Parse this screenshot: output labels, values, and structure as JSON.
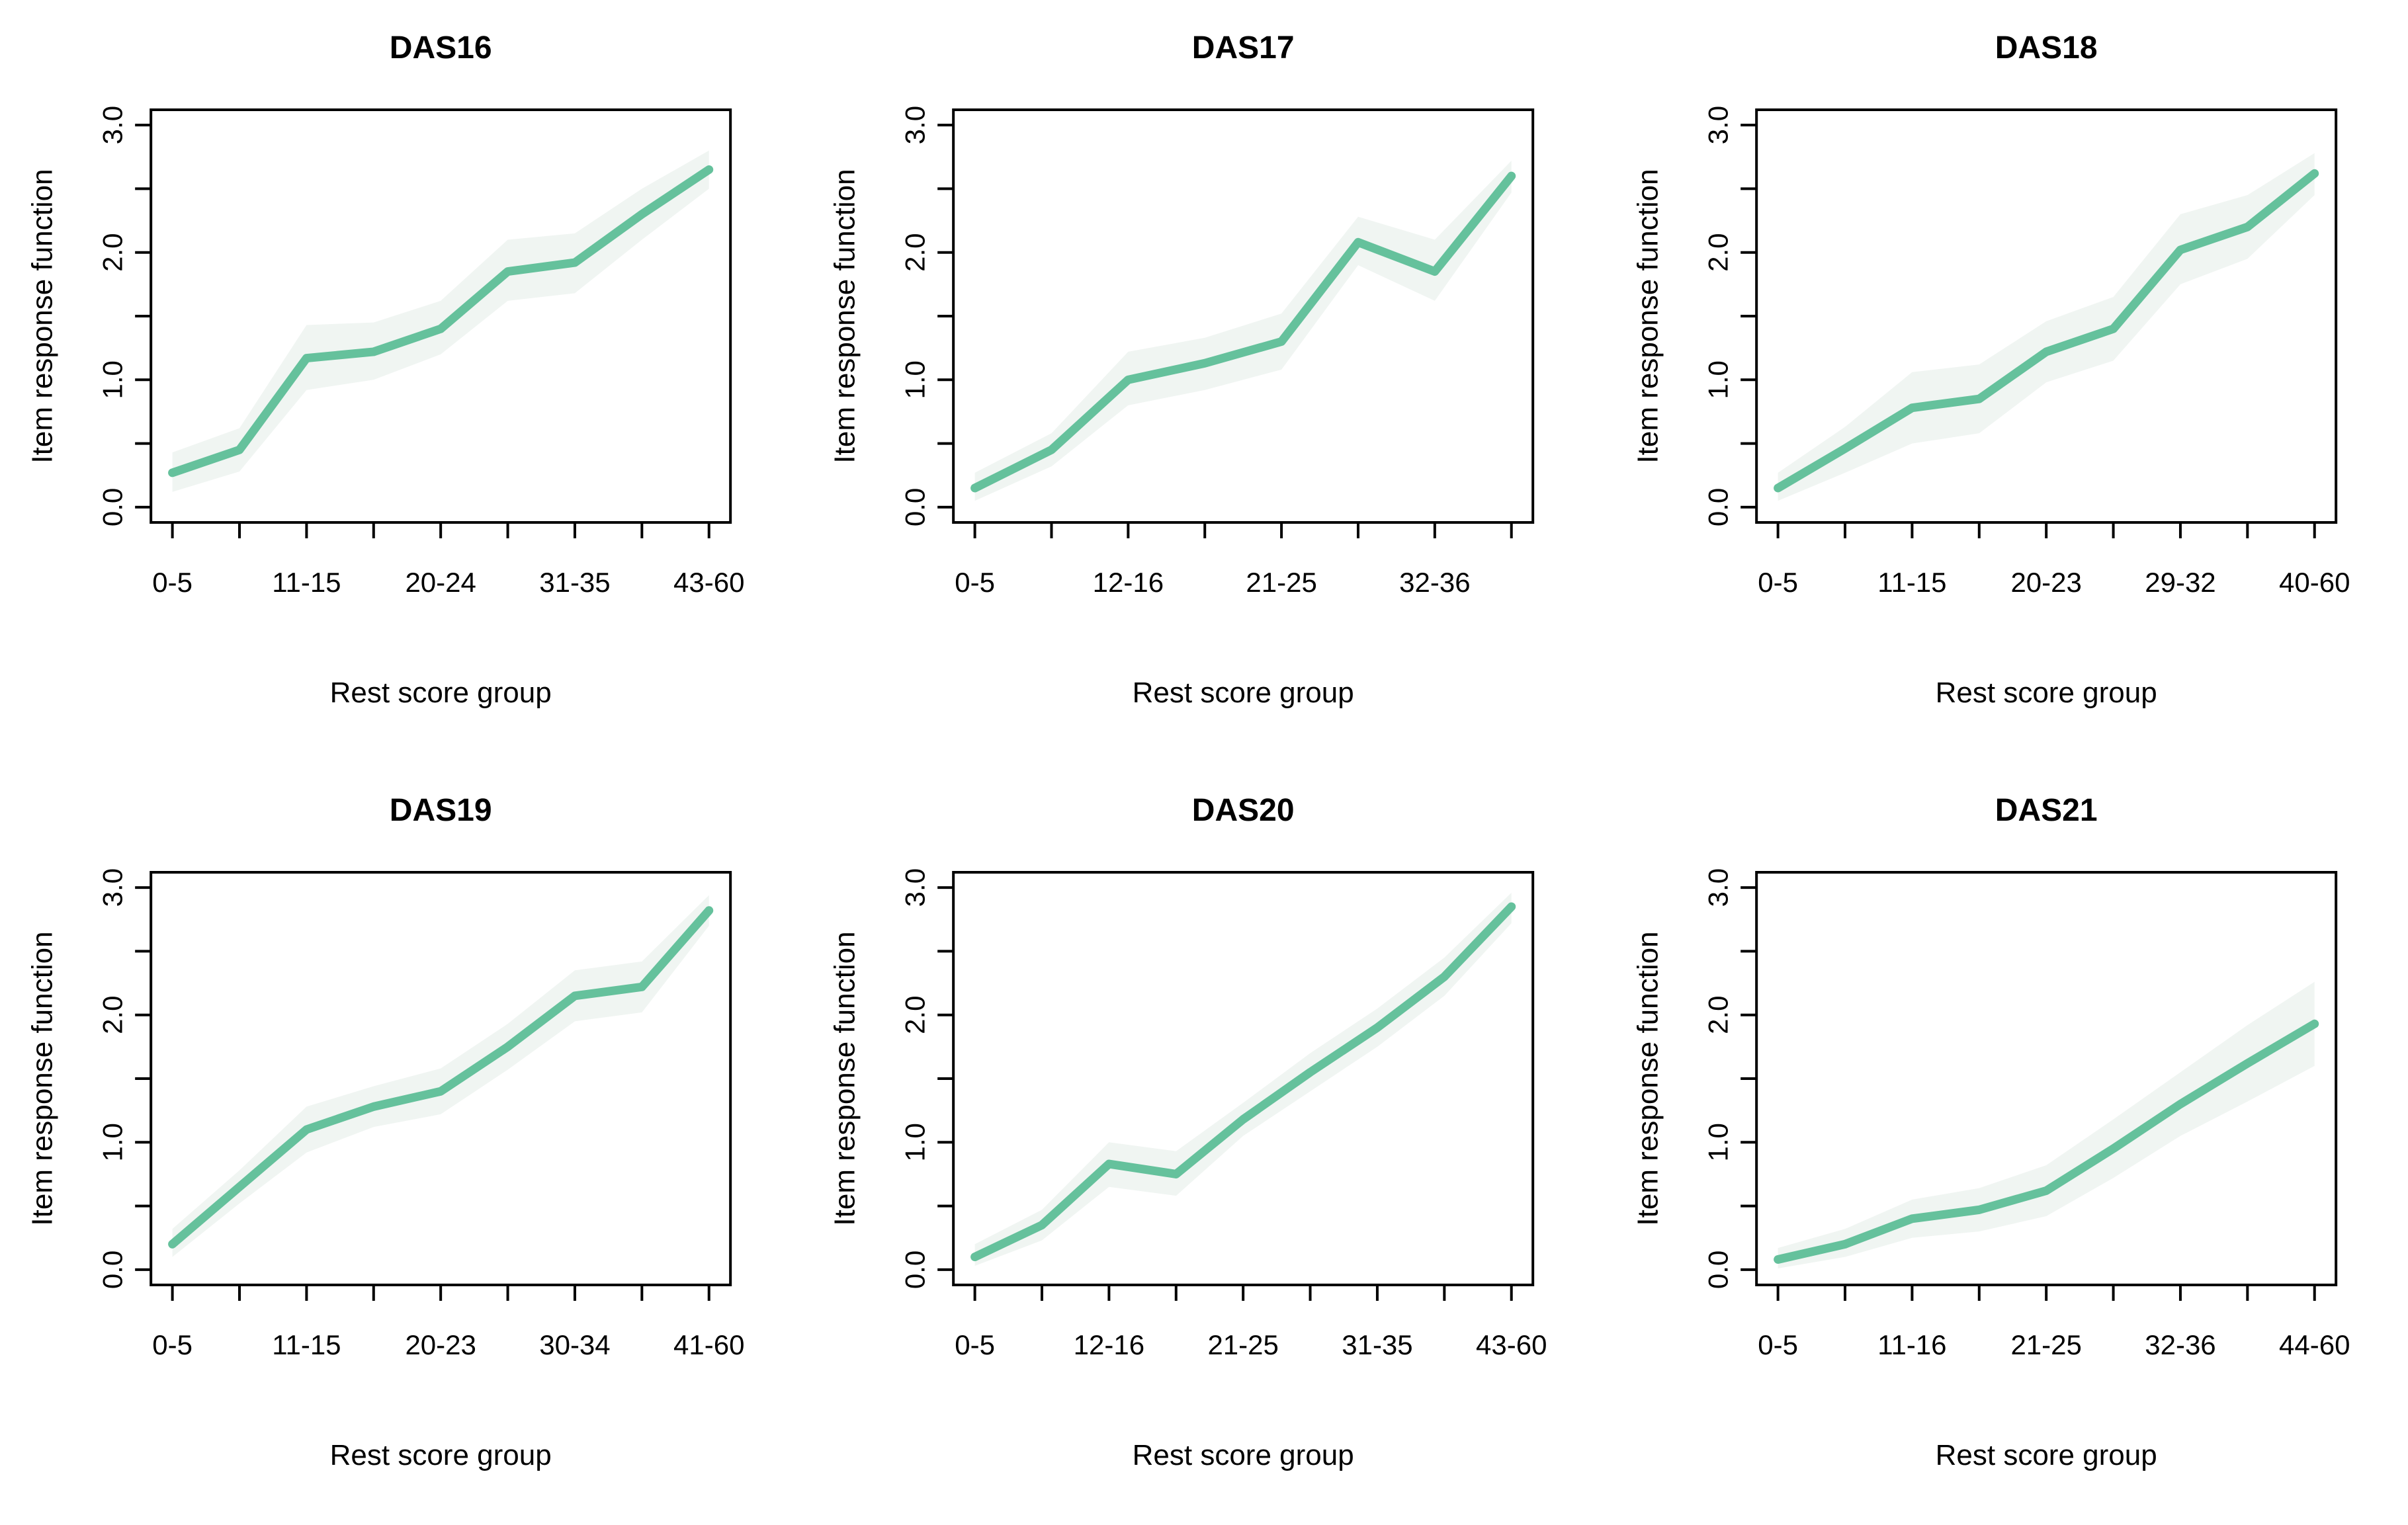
{
  "figure": {
    "background_color": "#ffffff",
    "line_color": "#65c19c",
    "band_color": "#f0f5f2",
    "axis_color": "#000000",
    "text_color": "#000000",
    "xlabel": "Rest score group",
    "ylabel": "Item response function",
    "y_axis": {
      "ylim": [
        0.0,
        3.0
      ],
      "minor_ticks": [
        0.0,
        0.5,
        1.0,
        1.5,
        2.0,
        2.5,
        3.0
      ],
      "labeled_ticks": [
        0.0,
        1.0,
        2.0,
        3.0
      ],
      "labels": [
        "0.0",
        "1.0",
        "2.0",
        "3.0"
      ]
    }
  },
  "chart_data": [
    {
      "type": "line",
      "title": "DAS16",
      "xlabel": "Rest score group",
      "ylabel": "Item response function",
      "ylim": [
        0.0,
        3.0
      ],
      "x_tick_labels": [
        "0-5",
        "",
        "11-15",
        "",
        "20-24",
        "",
        "31-35",
        "",
        "43-60"
      ],
      "values": [
        0.27,
        0.45,
        1.17,
        1.22,
        1.4,
        1.85,
        1.92,
        2.3,
        2.65
      ],
      "band_lower": [
        0.12,
        0.28,
        0.92,
        1.0,
        1.2,
        1.62,
        1.68,
        2.1,
        2.5
      ],
      "band_upper": [
        0.43,
        0.62,
        1.43,
        1.45,
        1.62,
        2.1,
        2.15,
        2.5,
        2.8
      ]
    },
    {
      "type": "line",
      "title": "DAS17",
      "xlabel": "Rest score group",
      "ylabel": "Item response function",
      "ylim": [
        0.0,
        3.0
      ],
      "x_tick_labels": [
        "0-5",
        "",
        "12-16",
        "",
        "21-25",
        "",
        "32-36",
        ""
      ],
      "values": [
        0.15,
        0.45,
        1.0,
        1.13,
        1.3,
        2.08,
        1.85,
        2.6
      ],
      "band_lower": [
        0.05,
        0.32,
        0.8,
        0.92,
        1.08,
        1.9,
        1.62,
        2.47
      ],
      "band_upper": [
        0.27,
        0.58,
        1.22,
        1.33,
        1.52,
        2.28,
        2.1,
        2.72
      ]
    },
    {
      "type": "line",
      "title": "DAS18",
      "xlabel": "Rest score group",
      "ylabel": "Item response function",
      "ylim": [
        0.0,
        3.0
      ],
      "x_tick_labels": [
        "0-5",
        "",
        "11-15",
        "",
        "20-23",
        "",
        "29-32",
        "",
        "40-60"
      ],
      "values": [
        0.15,
        0.46,
        0.78,
        0.85,
        1.22,
        1.4,
        2.02,
        2.2,
        2.62
      ],
      "band_lower": [
        0.05,
        0.27,
        0.5,
        0.58,
        0.98,
        1.15,
        1.75,
        1.95,
        2.45
      ],
      "band_upper": [
        0.27,
        0.63,
        1.06,
        1.12,
        1.46,
        1.65,
        2.3,
        2.45,
        2.78
      ]
    },
    {
      "type": "line",
      "title": "DAS19",
      "xlabel": "Rest score group",
      "ylabel": "Item response function",
      "ylim": [
        0.0,
        3.0
      ],
      "x_tick_labels": [
        "0-5",
        "",
        "11-15",
        "",
        "20-23",
        "",
        "30-34",
        "",
        "41-60"
      ],
      "values": [
        0.2,
        0.65,
        1.1,
        1.28,
        1.4,
        1.75,
        2.15,
        2.22,
        2.82
      ],
      "band_lower": [
        0.1,
        0.52,
        0.92,
        1.12,
        1.22,
        1.57,
        1.95,
        2.02,
        2.7
      ],
      "band_upper": [
        0.32,
        0.78,
        1.28,
        1.44,
        1.58,
        1.93,
        2.35,
        2.42,
        2.94
      ]
    },
    {
      "type": "line",
      "title": "DAS20",
      "xlabel": "Rest score group",
      "ylabel": "Item response function",
      "ylim": [
        0.0,
        3.0
      ],
      "x_tick_labels": [
        "0-5",
        "",
        "12-16",
        "",
        "21-25",
        "",
        "31-35",
        "",
        "43-60"
      ],
      "values": [
        0.1,
        0.35,
        0.83,
        0.75,
        1.18,
        1.55,
        1.9,
        2.3,
        2.85
      ],
      "band_lower": [
        0.03,
        0.23,
        0.65,
        0.58,
        1.05,
        1.4,
        1.75,
        2.15,
        2.72
      ],
      "band_upper": [
        0.2,
        0.47,
        1.0,
        0.93,
        1.31,
        1.7,
        2.05,
        2.45,
        2.96
      ]
    },
    {
      "type": "line",
      "title": "DAS21",
      "xlabel": "Rest score group",
      "ylabel": "Item response function",
      "ylim": [
        0.0,
        3.0
      ],
      "x_tick_labels": [
        "0-5",
        "",
        "11-16",
        "",
        "21-25",
        "",
        "32-36",
        "",
        "44-60"
      ],
      "values": [
        0.08,
        0.2,
        0.4,
        0.47,
        0.62,
        0.95,
        1.3,
        1.62,
        1.93
      ],
      "band_lower": [
        0.01,
        0.1,
        0.25,
        0.3,
        0.42,
        0.72,
        1.05,
        1.32,
        1.6
      ],
      "band_upper": [
        0.17,
        0.32,
        0.55,
        0.64,
        0.82,
        1.18,
        1.55,
        1.92,
        2.26
      ]
    }
  ]
}
